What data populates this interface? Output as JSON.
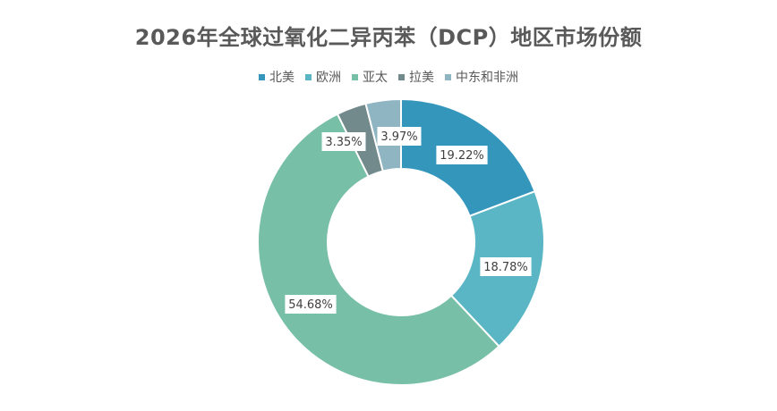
{
  "chart_data": {
    "type": "pie",
    "title": "2026年全球过氧化二异丙苯（DCP）地区市场份额",
    "donut": true,
    "legend_position": "top",
    "categories": [
      "北美",
      "欧洲",
      "亚太",
      "拉美",
      "中东和非洲"
    ],
    "values": [
      19.22,
      18.78,
      54.68,
      3.35,
      3.97
    ],
    "labels": [
      "19.22%",
      "18.78%",
      "54.68%",
      "3.35%",
      "3.97%"
    ],
    "colors": [
      "#3596BC",
      "#5AB6C4",
      "#78BFA8",
      "#738A8C",
      "#8FB4C2"
    ]
  }
}
